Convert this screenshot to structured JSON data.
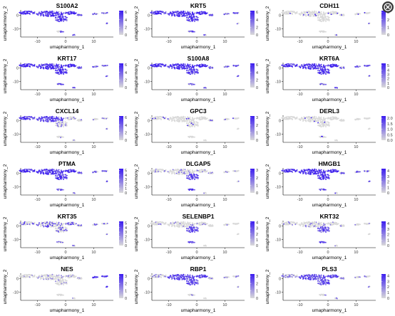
{
  "figure": {
    "xlabel": "umapharmony_1",
    "ylabel": "umapharmony_2",
    "x_ticks": [
      -10,
      0,
      10
    ],
    "y_ticks": [
      0,
      -10
    ],
    "xlim": [
      -16,
      17
    ],
    "ylim": [
      -16,
      4
    ],
    "low_color": "#d9d9d9",
    "high_color": "#3b1cf0"
  },
  "close_button": {
    "icon": "close-icon"
  },
  "chart_data": [
    {
      "type": "scatter",
      "title": "S100A2",
      "legend_ticks": [
        0,
        2,
        4,
        6
      ],
      "legend_max": 6.4,
      "pattern": "wide"
    },
    {
      "type": "scatter",
      "title": "KRT5",
      "legend_ticks": [
        0,
        2,
        4,
        6
      ],
      "legend_max": 6.4,
      "pattern": "wide"
    },
    {
      "type": "scatter",
      "title": "CDH11",
      "legend_ticks": [
        0,
        1,
        2,
        3
      ],
      "legend_max": 3.2,
      "pattern": "sparse"
    },
    {
      "type": "scatter",
      "title": "KRT17",
      "legend_ticks": [
        0,
        2,
        4,
        6
      ],
      "legend_max": 6.4,
      "pattern": "wide"
    },
    {
      "type": "scatter",
      "title": "S100A8",
      "legend_ticks": [
        0,
        2,
        4,
        6
      ],
      "legend_max": 6.4,
      "pattern": "wide"
    },
    {
      "type": "scatter",
      "title": "KRT6A",
      "legend_ticks": [
        0,
        1,
        2,
        3,
        4,
        5
      ],
      "legend_max": 5.5,
      "pattern": "wide"
    },
    {
      "type": "scatter",
      "title": "CXCL14",
      "legend_ticks": [
        0,
        2,
        4,
        6
      ],
      "legend_max": 6.4,
      "pattern": "left"
    },
    {
      "type": "scatter",
      "title": "GPC3",
      "legend_ticks": [
        0,
        1,
        2,
        3
      ],
      "legend_max": 3.2,
      "pattern": "sparse"
    },
    {
      "type": "scatter",
      "title": "DERL3",
      "legend_ticks": [
        "0.0",
        "0.5",
        "1.0",
        "1.5",
        "2.0"
      ],
      "legend_max": 2.2,
      "pattern": "sparse"
    },
    {
      "type": "scatter",
      "title": "PTMA",
      "legend_ticks": [
        0,
        1,
        2,
        3,
        4,
        5
      ],
      "legend_max": 5.4,
      "pattern": "wide"
    },
    {
      "type": "scatter",
      "title": "DLGAP5",
      "legend_ticks": [
        0,
        1,
        2,
        3
      ],
      "legend_max": 3.2,
      "pattern": "bottom"
    },
    {
      "type": "scatter",
      "title": "HMGB1",
      "legend_ticks": [
        0,
        1,
        2,
        3,
        4
      ],
      "legend_max": 4.4,
      "pattern": "wide"
    },
    {
      "type": "scatter",
      "title": "KRT35",
      "legend_ticks": [
        0,
        1,
        2,
        3,
        4,
        5
      ],
      "legend_max": 5.4,
      "pattern": "scatter"
    },
    {
      "type": "scatter",
      "title": "SELENBP1",
      "legend_ticks": [
        0,
        1,
        2,
        3,
        4
      ],
      "legend_max": 4.2,
      "pattern": "bottom"
    },
    {
      "type": "scatter",
      "title": "KRT32",
      "legend_ticks": [
        0,
        1,
        2,
        3,
        4
      ],
      "legend_max": 4.4,
      "pattern": "bottom"
    },
    {
      "type": "scatter",
      "title": "NES",
      "legend_ticks": [
        0,
        1,
        2,
        3
      ],
      "legend_max": 3.3,
      "pattern": "rightwing"
    },
    {
      "type": "scatter",
      "title": "RBP1",
      "legend_ticks": [
        0,
        1,
        2,
        3
      ],
      "legend_max": 3.3,
      "pattern": "main"
    },
    {
      "type": "scatter",
      "title": "PLS3",
      "legend_ticks": [
        0,
        1,
        2,
        3,
        4
      ],
      "legend_max": 4.3,
      "pattern": "main"
    }
  ]
}
